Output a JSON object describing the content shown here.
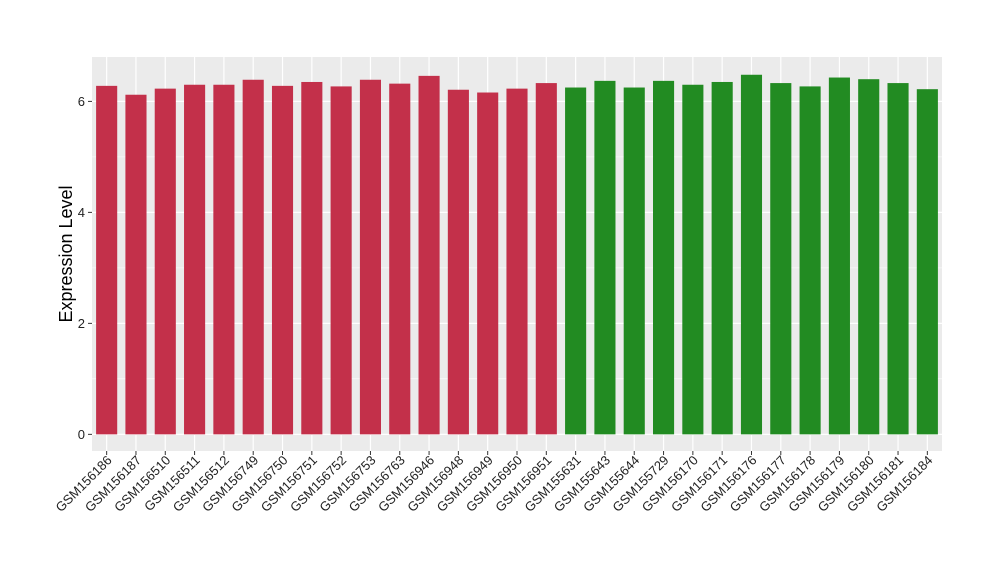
{
  "chart_data": {
    "type": "bar",
    "title": "",
    "xlabel": "",
    "ylabel": "Expression Level",
    "ylim": [
      -0.3,
      6.8
    ],
    "yticks": [
      0,
      2,
      4,
      6
    ],
    "grid": true,
    "legend": "none",
    "categories": [
      "GSM156186",
      "GSM156187",
      "GSM156510",
      "GSM156511",
      "GSM156512",
      "GSM156749",
      "GSM156750",
      "GSM156751",
      "GSM156752",
      "GSM156753",
      "GSM156763",
      "GSM156946",
      "GSM156948",
      "GSM156949",
      "GSM156950",
      "GSM156951",
      "GSM155631",
      "GSM155643",
      "GSM155644",
      "GSM155729",
      "GSM156170",
      "GSM156171",
      "GSM156176",
      "GSM156177",
      "GSM156178",
      "GSM156179",
      "GSM156180",
      "GSM156181",
      "GSM156184"
    ],
    "values": [
      6.28,
      6.12,
      6.23,
      6.3,
      6.3,
      6.39,
      6.28,
      6.35,
      6.27,
      6.39,
      6.32,
      6.46,
      6.21,
      6.16,
      6.23,
      6.33,
      6.25,
      6.37,
      6.25,
      6.37,
      6.3,
      6.35,
      6.48,
      6.33,
      6.27,
      6.43,
      6.4,
      6.33,
      6.22
    ],
    "groups": [
      0,
      0,
      0,
      0,
      0,
      0,
      0,
      0,
      0,
      0,
      0,
      0,
      0,
      0,
      0,
      0,
      1,
      1,
      1,
      1,
      1,
      1,
      1,
      1,
      1,
      1,
      1,
      1,
      1
    ],
    "group_colors": [
      "#C3304A",
      "#228B22"
    ]
  },
  "colors": {
    "panel_background": "#EBEBEB",
    "gridline": "#FFFFFF",
    "tick_mark": "#333333"
  }
}
